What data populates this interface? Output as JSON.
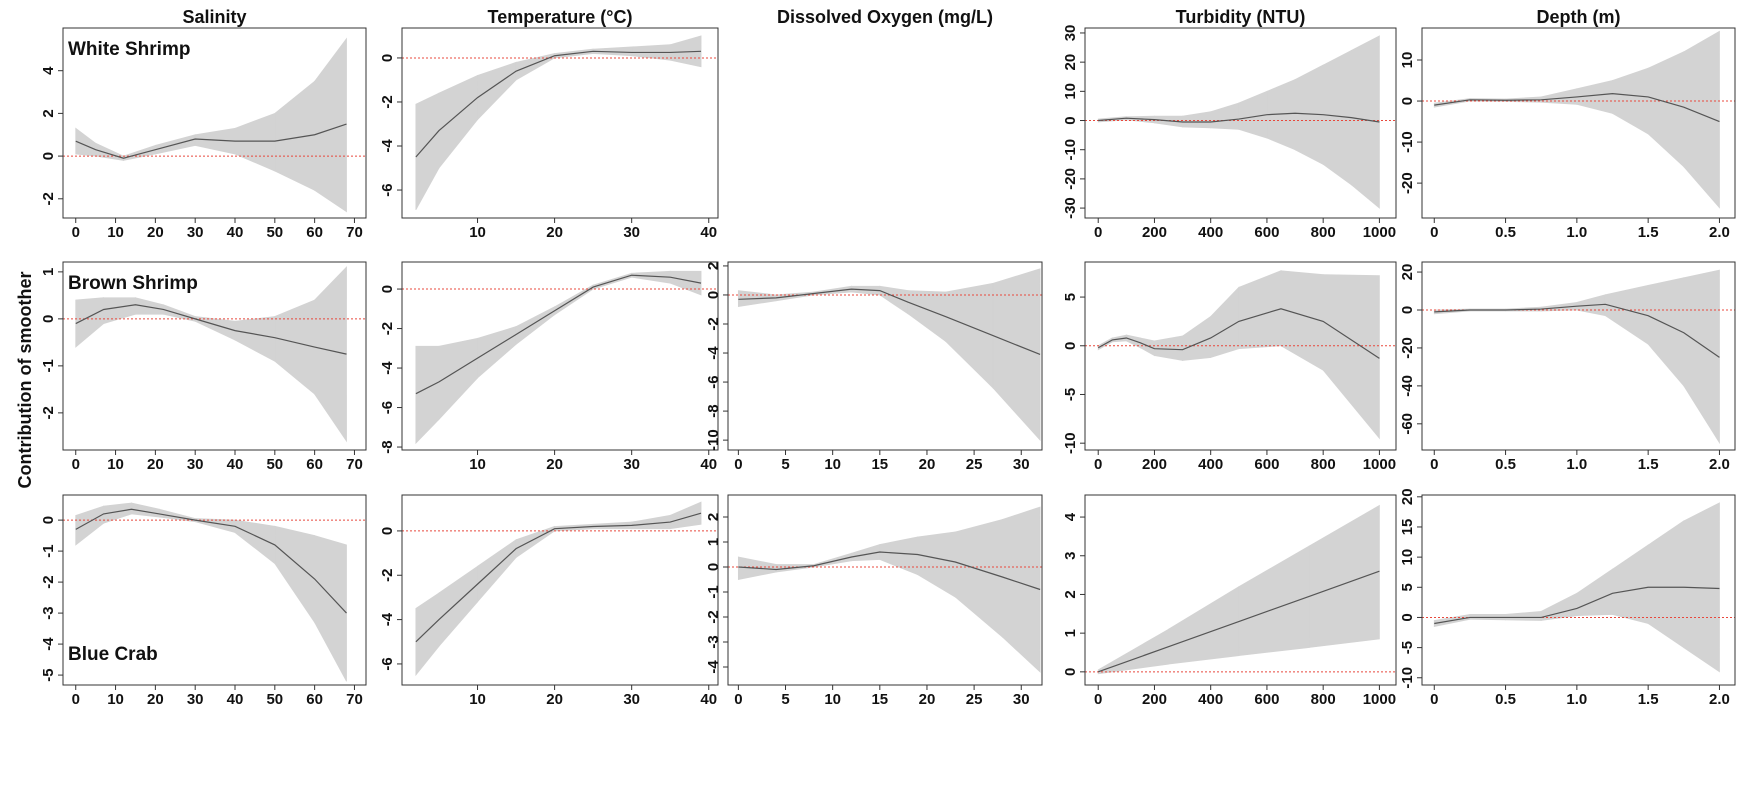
{
  "column_titles": [
    "Salinity",
    "Temperature (°C)",
    "Dissolved Oxygen (mg/L)",
    "Turbidity (NTU)",
    "Depth (m)"
  ],
  "y_axis_label": "Contribution of smoother",
  "chart_data": [
    {
      "type": "line",
      "label": "White Shrimp",
      "x": [
        0,
        5,
        12,
        20,
        30,
        40,
        50,
        60,
        68
      ],
      "series": [
        {
          "color": "#555555",
          "band_color": "#d3d3d3",
          "values": [
            0.7,
            0.3,
            -0.1,
            0.3,
            0.8,
            0.7,
            0.7,
            1.0,
            1.5
          ],
          "lower": [
            0.1,
            0.0,
            -0.2,
            0.1,
            0.5,
            0.1,
            -0.7,
            -1.6,
            -2.6
          ],
          "upper": [
            1.3,
            0.6,
            0.0,
            0.5,
            1.0,
            1.3,
            2.0,
            3.5,
            5.5
          ]
        }
      ],
      "xlim": [
        -3.2,
        72.9
      ],
      "ylim": [
        -2.9,
        6.0
      ],
      "xticks": [
        0,
        10,
        20,
        30,
        40,
        50,
        60,
        70
      ],
      "yticks": [
        -2,
        0,
        2,
        4
      ],
      "reference_line": 0,
      "reference_color": "#e8483c"
    },
    {
      "type": "line",
      "x": [
        2,
        5,
        10,
        15,
        20,
        25,
        30,
        35,
        39
      ],
      "series": [
        {
          "color": "#555555",
          "band_color": "#d3d3d3",
          "values": [
            -4.5,
            -3.3,
            -1.8,
            -0.6,
            0.1,
            0.3,
            0.25,
            0.25,
            0.3
          ],
          "lower": [
            -6.9,
            -5.0,
            -2.8,
            -1.0,
            0.0,
            0.2,
            0.1,
            -0.1,
            -0.4
          ],
          "upper": [
            -2.1,
            -1.6,
            -0.8,
            -0.2,
            0.2,
            0.4,
            0.5,
            0.6,
            1.0
          ]
        }
      ],
      "xlim": [
        0.2,
        41.2
      ],
      "ylim": [
        -7.27,
        1.36
      ],
      "xticks": [
        10,
        20,
        30,
        40
      ],
      "yticks": [
        -6,
        -4,
        -2,
        0
      ],
      "reference_line": 0,
      "reference_color": "#e8483c"
    },
    {
      "type": "line",
      "x": [
        0,
        100,
        200,
        300,
        400,
        500,
        600,
        700,
        800,
        900,
        1000
      ],
      "series": [
        {
          "color": "#555555",
          "band_color": "#d3d3d3",
          "values": [
            0,
            0.8,
            0.3,
            -0.5,
            -0.5,
            0.5,
            2,
            2.5,
            2,
            1,
            -0.5
          ],
          "lower": [
            -0.5,
            0.2,
            -0.8,
            -2.2,
            -2.5,
            -3,
            -6,
            -10,
            -15,
            -22,
            -30
          ],
          "upper": [
            0.5,
            1.3,
            1.5,
            1.5,
            3,
            6,
            10,
            14,
            19,
            24,
            29
          ]
        }
      ],
      "xlim": [
        -47,
        1059
      ],
      "ylim": [
        -33.4,
        31.7
      ],
      "xticks": [
        0,
        200,
        400,
        600,
        800,
        1000
      ],
      "yticks": [
        -30,
        -20,
        -10,
        0,
        10,
        20,
        30
      ],
      "reference_line": 0,
      "reference_color": "#e8483c"
    },
    {
      "type": "line",
      "x": [
        0,
        0.25,
        0.5,
        0.75,
        1.0,
        1.25,
        1.5,
        1.75,
        2.0
      ],
      "series": [
        {
          "color": "#555555",
          "band_color": "#d3d3d3",
          "values": [
            -1,
            0.3,
            0.2,
            0.3,
            1,
            1.8,
            1,
            -1.5,
            -5
          ],
          "lower": [
            -1.5,
            0,
            -0.1,
            -0.3,
            -0.8,
            -3,
            -8,
            -16,
            -26
          ],
          "upper": [
            -0.5,
            0.6,
            0.5,
            1,
            3,
            5,
            8,
            12,
            17
          ]
        }
      ],
      "xlim": [
        -0.086,
        2.109
      ],
      "ylim": [
        -28.5,
        17.8
      ],
      "xticks": [
        0,
        0.5,
        {
          "value": 1,
          "label": "1.0"
        },
        1.5,
        {
          "value": 2,
          "label": "2.0"
        }
      ],
      "yticks": [
        -20,
        -10,
        0,
        10
      ],
      "reference_line": 0,
      "reference_color": "#e8483c"
    },
    {
      "type": "line",
      "label": "Brown Shrimp",
      "x": [
        0,
        7,
        15,
        22,
        30,
        40,
        50,
        60,
        68
      ],
      "series": [
        {
          "color": "#555555",
          "band_color": "#d3d3d3",
          "values": [
            -0.1,
            0.2,
            0.3,
            0.2,
            0.0,
            -0.25,
            -0.4,
            -0.6,
            -0.75
          ],
          "lower": [
            -0.6,
            -0.1,
            0.1,
            0.1,
            -0.05,
            -0.45,
            -0.9,
            -1.6,
            -2.6
          ],
          "upper": [
            0.4,
            0.45,
            0.45,
            0.3,
            0.05,
            -0.05,
            0.05,
            0.4,
            1.1
          ]
        }
      ],
      "xlim": [
        -3.2,
        72.9
      ],
      "ylim": [
        -2.79,
        1.21
      ],
      "xticks": [
        0,
        10,
        20,
        30,
        40,
        50,
        60,
        70
      ],
      "yticks": [
        -2,
        -1,
        0,
        1
      ],
      "reference_line": 0,
      "reference_color": "#e8483c"
    },
    {
      "type": "line",
      "x": [
        2,
        5,
        10,
        15,
        20,
        25,
        30,
        35,
        39
      ],
      "series": [
        {
          "color": "#555555",
          "band_color": "#d3d3d3",
          "values": [
            -5.3,
            -4.7,
            -3.5,
            -2.3,
            -1.1,
            0.1,
            0.7,
            0.6,
            0.3
          ],
          "lower": [
            -7.8,
            -6.6,
            -4.5,
            -2.8,
            -1.3,
            0,
            0.6,
            0.3,
            -0.3
          ],
          "upper": [
            -2.9,
            -2.9,
            -2.5,
            -1.9,
            -0.9,
            0.2,
            0.8,
            0.9,
            0.9
          ]
        }
      ],
      "xlim": [
        0.2,
        41.2
      ],
      "ylim": [
        -8.15,
        1.37
      ],
      "xticks": [
        10,
        20,
        30,
        40
      ],
      "yticks": [
        -8,
        -6,
        -4,
        -2,
        0
      ],
      "reference_line": 0,
      "reference_color": "#e8483c"
    },
    {
      "type": "line",
      "x": [
        0,
        4,
        8,
        12,
        15,
        18,
        22,
        27,
        32
      ],
      "series": [
        {
          "color": "#555555",
          "band_color": "#d3d3d3",
          "values": [
            -0.3,
            -0.2,
            0.1,
            0.4,
            0.3,
            -0.5,
            -1.5,
            -2.8,
            -4.1
          ],
          "lower": [
            -0.8,
            -0.4,
            0,
            0.2,
            0,
            -1.3,
            -3.2,
            -6.4,
            -10
          ],
          "upper": [
            0.3,
            0,
            0.2,
            0.6,
            0.6,
            0.3,
            0.2,
            0.8,
            1.8
          ]
        }
      ],
      "xlim": [
        -1.1,
        32.2
      ],
      "ylim": [
        -10.68,
        2.27
      ],
      "xticks": [
        0,
        5,
        10,
        15,
        20,
        25,
        30
      ],
      "yticks": [
        -10,
        -8,
        -6,
        -4,
        -2,
        0,
        2
      ],
      "reference_line": 0,
      "reference_color": "#e8483c"
    },
    {
      "type": "line",
      "x": [
        0,
        50,
        100,
        150,
        200,
        300,
        400,
        500,
        650,
        800,
        1000
      ],
      "series": [
        {
          "color": "#555555",
          "band_color": "#d3d3d3",
          "values": [
            -0.2,
            0.6,
            0.8,
            0.3,
            -0.3,
            -0.4,
            0.8,
            2.5,
            3.8,
            2.5,
            -1.3
          ],
          "lower": [
            -0.4,
            0.4,
            0.5,
            -0.2,
            -1,
            -1.5,
            -1.2,
            -0.3,
            0,
            -2.5,
            -9.5
          ],
          "upper": [
            0,
            0.8,
            1.1,
            0.8,
            0.5,
            1,
            3,
            6,
            7.7,
            7.3,
            7.2
          ]
        }
      ],
      "xlim": [
        -47,
        1059
      ],
      "ylim": [
        -10.7,
        8.6
      ],
      "xticks": [
        0,
        200,
        400,
        600,
        800,
        1000
      ],
      "yticks": [
        -10,
        -5,
        0,
        5
      ],
      "reference_line": 0,
      "reference_color": "#e8483c"
    },
    {
      "type": "line",
      "x": [
        0,
        0.25,
        0.5,
        0.75,
        1.0,
        1.2,
        1.5,
        1.75,
        2.0
      ],
      "series": [
        {
          "color": "#555555",
          "band_color": "#d3d3d3",
          "values": [
            -1,
            0,
            0,
            0.5,
            2,
            3,
            -3,
            -12,
            -25
          ],
          "lower": [
            -2,
            -0.5,
            -0.5,
            -0.5,
            0,
            -3,
            -18,
            -40,
            -70
          ],
          "upper": [
            0,
            0.5,
            0.5,
            1.5,
            4,
            8,
            13,
            17,
            21
          ]
        }
      ],
      "xlim": [
        -0.086,
        2.109
      ],
      "ylim": [
        -73.8,
        25.3
      ],
      "xticks": [
        0,
        0.5,
        {
          "value": 1,
          "label": "1.0"
        },
        1.5,
        {
          "value": 2,
          "label": "2.0"
        }
      ],
      "yticks": [
        -60,
        -40,
        -20,
        0,
        20
      ],
      "reference_line": 0,
      "reference_color": "#e8483c"
    },
    {
      "type": "line",
      "label": "Blue Crab",
      "x": [
        0,
        7,
        14,
        21,
        30,
        40,
        50,
        60,
        68
      ],
      "series": [
        {
          "color": "#555555",
          "band_color": "#d3d3d3",
          "values": [
            -0.3,
            0.2,
            0.35,
            0.2,
            0,
            -0.2,
            -0.8,
            -1.9,
            -3.0
          ],
          "lower": [
            -0.8,
            -0.1,
            0.2,
            0.1,
            -0.05,
            -0.4,
            -1.4,
            -3.3,
            -5.2
          ],
          "upper": [
            0.15,
            0.45,
            0.55,
            0.35,
            0.05,
            0,
            -0.2,
            -0.5,
            -0.8
          ]
        }
      ],
      "xlim": [
        -3.2,
        72.9
      ],
      "ylim": [
        -5.32,
        0.81
      ],
      "xticks": [
        0,
        10,
        20,
        30,
        40,
        50,
        60,
        70
      ],
      "yticks": [
        -5,
        -4,
        -3,
        -2,
        -1,
        0
      ],
      "reference_line": 0,
      "reference_color": "#e8483c"
    },
    {
      "type": "line",
      "x": [
        2,
        5,
        10,
        15,
        20,
        25,
        30,
        35,
        39
      ],
      "series": [
        {
          "color": "#555555",
          "band_color": "#d3d3d3",
          "values": [
            -5.0,
            -4.0,
            -2.4,
            -0.8,
            0.1,
            0.2,
            0.25,
            0.4,
            0.8
          ],
          "lower": [
            -6.5,
            -5.2,
            -3.2,
            -1.2,
            0,
            0.1,
            0.1,
            0.1,
            0.3
          ],
          "upper": [
            -3.5,
            -2.8,
            -1.6,
            -0.4,
            0.2,
            0.3,
            0.4,
            0.7,
            1.3
          ]
        }
      ],
      "xlim": [
        0.2,
        41.2
      ],
      "ylim": [
        -6.95,
        1.62
      ],
      "xticks": [
        10,
        20,
        30,
        40
      ],
      "yticks": [
        -6,
        -4,
        -2,
        0
      ],
      "reference_line": 0,
      "reference_color": "#e8483c"
    },
    {
      "type": "line",
      "x": [
        0,
        4,
        8,
        12,
        15,
        19,
        23,
        28,
        32
      ],
      "series": [
        {
          "color": "#555555",
          "band_color": "#d3d3d3",
          "values": [
            0,
            -0.1,
            0.05,
            0.4,
            0.6,
            0.5,
            0.2,
            -0.4,
            -0.9
          ],
          "lower": [
            -0.5,
            -0.2,
            0,
            0.25,
            0.3,
            -0.3,
            -1.2,
            -2.8,
            -4.2
          ],
          "upper": [
            0.4,
            0.1,
            0.1,
            0.55,
            0.9,
            1.2,
            1.4,
            1.9,
            2.4
          ]
        }
      ],
      "xlim": [
        -1.1,
        32.2
      ],
      "ylim": [
        -4.72,
        2.88
      ],
      "xticks": [
        0,
        5,
        10,
        15,
        20,
        25,
        30
      ],
      "yticks": [
        -4,
        -3,
        -2,
        -1,
        0,
        1,
        2
      ],
      "reference_line": 0,
      "reference_color": "#e8483c"
    },
    {
      "type": "line",
      "x": [
        0,
        250,
        500,
        750,
        1000
      ],
      "series": [
        {
          "color": "#555555",
          "band_color": "#d3d3d3",
          "values": [
            0,
            0.65,
            1.3,
            1.95,
            2.6
          ],
          "lower": [
            -0.05,
            0.2,
            0.42,
            0.63,
            0.85
          ],
          "upper": [
            0.05,
            1.1,
            2.2,
            3.25,
            4.3
          ]
        }
      ],
      "xlim": [
        -47,
        1059
      ],
      "ylim": [
        -0.34,
        4.57
      ],
      "xticks": [
        0,
        200,
        400,
        600,
        800,
        1000
      ],
      "yticks": [
        0,
        1,
        2,
        3,
        4
      ],
      "reference_line": 0,
      "reference_color": "#e8483c"
    },
    {
      "type": "line",
      "x": [
        0,
        0.25,
        0.5,
        0.75,
        1.0,
        1.25,
        1.5,
        1.75,
        2.0
      ],
      "series": [
        {
          "color": "#555555",
          "band_color": "#d3d3d3",
          "values": [
            -1,
            0,
            0,
            0,
            1.5,
            4,
            5,
            5,
            4.8
          ],
          "lower": [
            -1.5,
            -0.3,
            -0.4,
            -0.5,
            0.3,
            0.5,
            -1,
            -5,
            -9
          ],
          "upper": [
            -0.5,
            0.5,
            0.5,
            1,
            4,
            8,
            12,
            16,
            19
          ]
        }
      ],
      "xlim": [
        -0.086,
        2.109
      ],
      "ylim": [
        -11.2,
        20.3
      ],
      "xticks": [
        0,
        0.5,
        {
          "value": 1,
          "label": "1.0"
        },
        1.5,
        {
          "value": 2,
          "label": "2.0"
        }
      ],
      "yticks": [
        -10,
        -5,
        0,
        5,
        10,
        15,
        20
      ],
      "reference_line": 0,
      "reference_color": "#e8483c"
    }
  ]
}
